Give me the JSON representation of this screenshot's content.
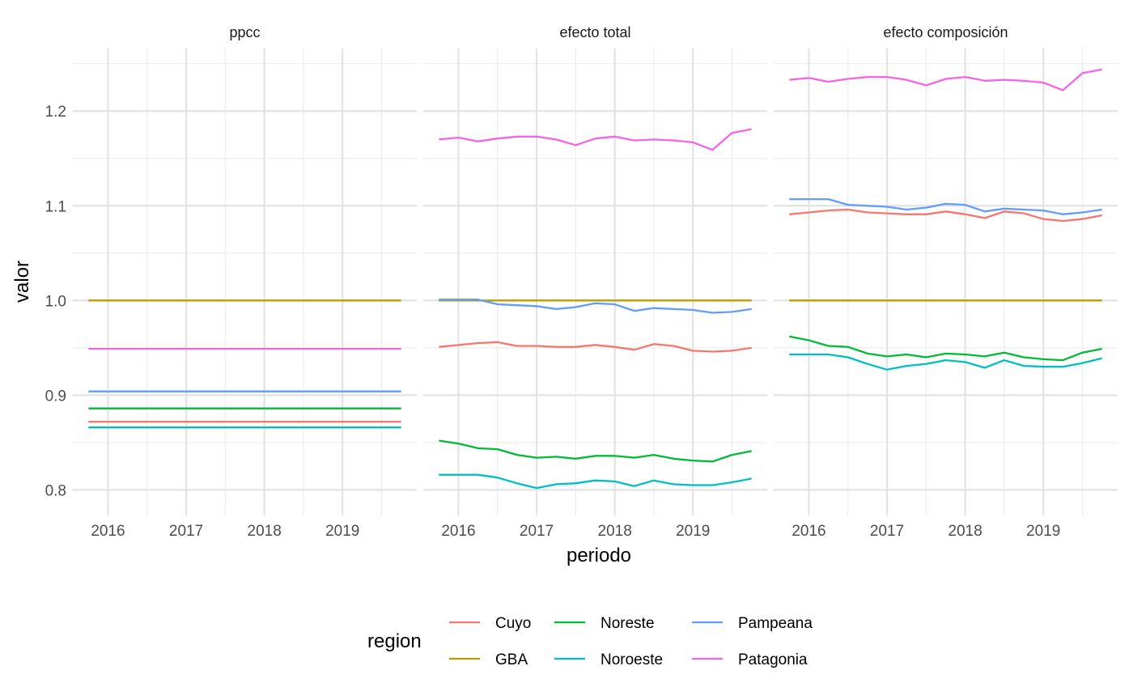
{
  "chart_data": {
    "type": "line",
    "xlabel": "periodo",
    "ylabel": "valor",
    "x_ticks": [
      "2016",
      "2017",
      "2018",
      "2019"
    ],
    "x_tick_values": [
      2016,
      2017,
      2018,
      2019
    ],
    "xlim": [
      2015.55,
      2019.95
    ],
    "y_ticks": [
      "0.8",
      "0.9",
      "1.0",
      "1.1",
      "1.2"
    ],
    "y_tick_values": [
      0.8,
      0.9,
      1.0,
      1.1,
      1.2
    ],
    "ylim": [
      0.773,
      1.266
    ],
    "grid": true,
    "legend": {
      "title": "region",
      "position": "bottom",
      "entries": [
        "Cuyo",
        "GBA",
        "Noreste",
        "Noroeste",
        "Pampeana",
        "Patagonia"
      ]
    },
    "colors": {
      "Cuyo": "#F8766D",
      "GBA": "#B79F00",
      "Noreste": "#00BA38",
      "Noroeste": "#00BFC4",
      "Pampeana": "#619CFF",
      "Patagonia": "#F564E3"
    },
    "x": [
      2015.75,
      2016.0,
      2016.25,
      2016.5,
      2016.75,
      2017.0,
      2017.25,
      2017.5,
      2017.75,
      2018.0,
      2018.25,
      2018.5,
      2018.75,
      2019.0,
      2019.25,
      2019.5,
      2019.75
    ],
    "facets": [
      {
        "title": "ppcc",
        "series": [
          {
            "name": "Cuyo",
            "values": [
              0.872,
              0.872,
              0.872,
              0.872,
              0.872,
              0.872,
              0.872,
              0.872,
              0.872,
              0.872,
              0.872,
              0.872,
              0.872,
              0.872,
              0.872,
              0.872,
              0.872
            ]
          },
          {
            "name": "GBA",
            "values": [
              1.0,
              1.0,
              1.0,
              1.0,
              1.0,
              1.0,
              1.0,
              1.0,
              1.0,
              1.0,
              1.0,
              1.0,
              1.0,
              1.0,
              1.0,
              1.0,
              1.0
            ]
          },
          {
            "name": "Noreste",
            "values": [
              0.886,
              0.886,
              0.886,
              0.886,
              0.886,
              0.886,
              0.886,
              0.886,
              0.886,
              0.886,
              0.886,
              0.886,
              0.886,
              0.886,
              0.886,
              0.886,
              0.886
            ]
          },
          {
            "name": "Noroeste",
            "values": [
              0.866,
              0.866,
              0.866,
              0.866,
              0.866,
              0.866,
              0.866,
              0.866,
              0.866,
              0.866,
              0.866,
              0.866,
              0.866,
              0.866,
              0.866,
              0.866,
              0.866
            ]
          },
          {
            "name": "Pampeana",
            "values": [
              0.904,
              0.904,
              0.904,
              0.904,
              0.904,
              0.904,
              0.904,
              0.904,
              0.904,
              0.904,
              0.904,
              0.904,
              0.904,
              0.904,
              0.904,
              0.904,
              0.904
            ]
          },
          {
            "name": "Patagonia",
            "values": [
              0.949,
              0.949,
              0.949,
              0.949,
              0.949,
              0.949,
              0.949,
              0.949,
              0.949,
              0.949,
              0.949,
              0.949,
              0.949,
              0.949,
              0.949,
              0.949,
              0.949
            ]
          }
        ]
      },
      {
        "title": "efecto total",
        "series": [
          {
            "name": "Cuyo",
            "values": [
              0.951,
              0.953,
              0.955,
              0.956,
              0.952,
              0.952,
              0.951,
              0.951,
              0.953,
              0.951,
              0.948,
              0.954,
              0.952,
              0.947,
              0.946,
              0.947,
              0.95
            ]
          },
          {
            "name": "GBA",
            "values": [
              1.0,
              1.0,
              1.0,
              1.0,
              1.0,
              1.0,
              1.0,
              1.0,
              1.0,
              1.0,
              1.0,
              1.0,
              1.0,
              1.0,
              1.0,
              1.0,
              1.0
            ]
          },
          {
            "name": "Noreste",
            "values": [
              0.852,
              0.849,
              0.844,
              0.843,
              0.837,
              0.834,
              0.835,
              0.833,
              0.836,
              0.836,
              0.834,
              0.837,
              0.833,
              0.831,
              0.83,
              0.837,
              0.841
            ]
          },
          {
            "name": "Noroeste",
            "values": [
              0.816,
              0.816,
              0.816,
              0.813,
              0.807,
              0.802,
              0.806,
              0.807,
              0.81,
              0.809,
              0.804,
              0.81,
              0.806,
              0.805,
              0.805,
              0.808,
              0.812
            ]
          },
          {
            "name": "Pampeana",
            "values": [
              1.001,
              1.001,
              1.001,
              0.996,
              0.995,
              0.994,
              0.991,
              0.993,
              0.997,
              0.996,
              0.989,
              0.992,
              0.991,
              0.99,
              0.987,
              0.988,
              0.991
            ]
          },
          {
            "name": "Patagonia",
            "values": [
              1.17,
              1.172,
              1.168,
              1.171,
              1.173,
              1.173,
              1.17,
              1.164,
              1.171,
              1.173,
              1.169,
              1.17,
              1.169,
              1.167,
              1.159,
              1.177,
              1.181
            ]
          }
        ]
      },
      {
        "title": "efecto composición",
        "series": [
          {
            "name": "Cuyo",
            "values": [
              1.091,
              1.093,
              1.095,
              1.096,
              1.093,
              1.092,
              1.091,
              1.091,
              1.094,
              1.091,
              1.087,
              1.094,
              1.092,
              1.086,
              1.084,
              1.086,
              1.09
            ]
          },
          {
            "name": "GBA",
            "values": [
              1.0,
              1.0,
              1.0,
              1.0,
              1.0,
              1.0,
              1.0,
              1.0,
              1.0,
              1.0,
              1.0,
              1.0,
              1.0,
              1.0,
              1.0,
              1.0,
              1.0
            ]
          },
          {
            "name": "Noreste",
            "values": [
              0.962,
              0.958,
              0.952,
              0.951,
              0.944,
              0.941,
              0.943,
              0.94,
              0.944,
              0.943,
              0.941,
              0.945,
              0.94,
              0.938,
              0.937,
              0.945,
              0.949
            ]
          },
          {
            "name": "Noroeste",
            "values": [
              0.943,
              0.943,
              0.943,
              0.94,
              0.933,
              0.927,
              0.931,
              0.933,
              0.937,
              0.935,
              0.929,
              0.937,
              0.931,
              0.93,
              0.93,
              0.934,
              0.939
            ]
          },
          {
            "name": "Pampeana",
            "values": [
              1.107,
              1.107,
              1.107,
              1.101,
              1.1,
              1.099,
              1.096,
              1.098,
              1.102,
              1.101,
              1.094,
              1.097,
              1.096,
              1.095,
              1.091,
              1.093,
              1.096
            ]
          },
          {
            "name": "Patagonia",
            "values": [
              1.233,
              1.235,
              1.231,
              1.234,
              1.236,
              1.236,
              1.233,
              1.227,
              1.234,
              1.236,
              1.232,
              1.233,
              1.232,
              1.23,
              1.222,
              1.24,
              1.244
            ]
          }
        ]
      }
    ]
  }
}
